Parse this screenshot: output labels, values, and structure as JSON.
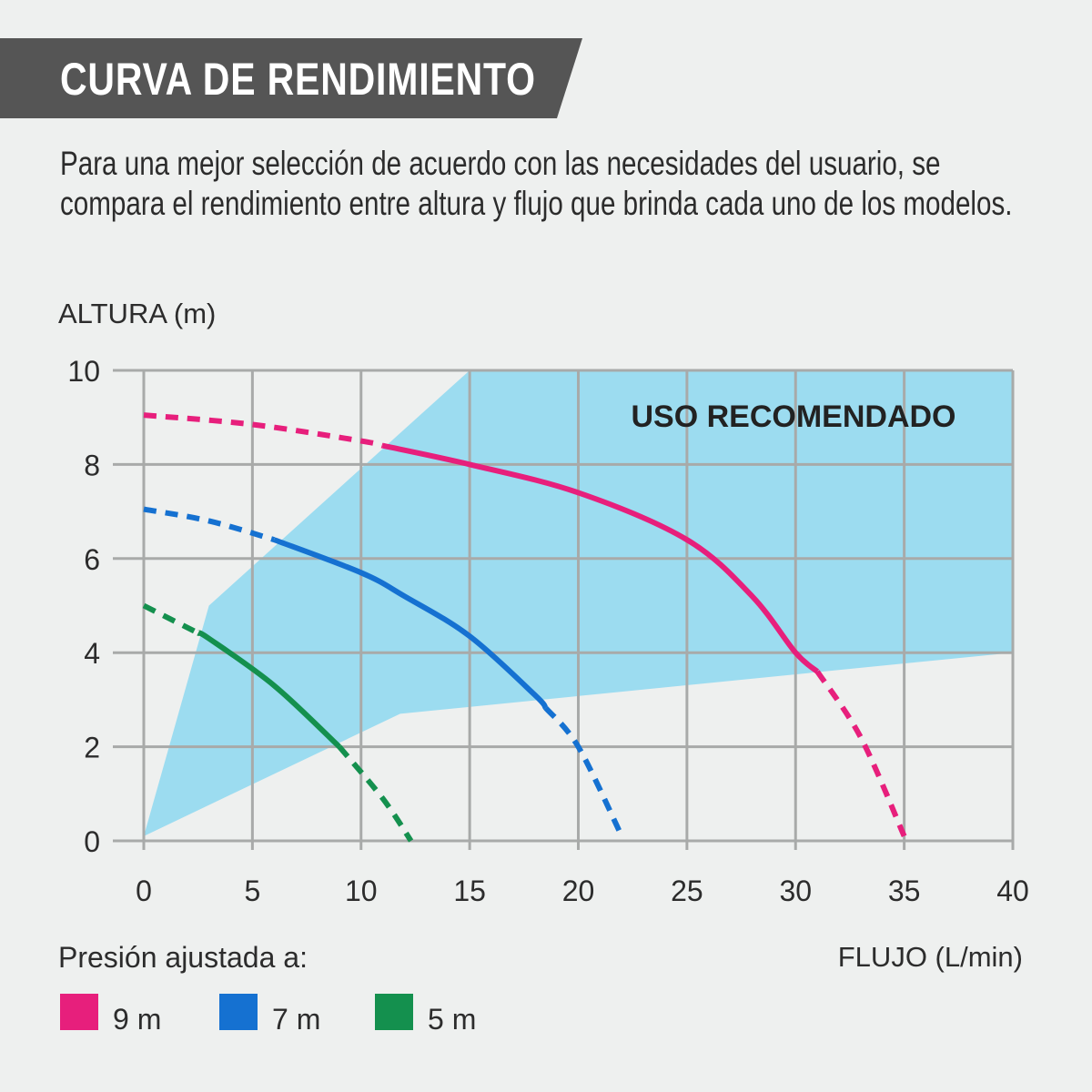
{
  "header": {
    "title": "CURVA DE RENDIMIENTO",
    "description": "Para una mejor selección de acuerdo con las necesidades del usuario, se compara el rendimiento entre altura y flujo que brinda cada uno de los modelos."
  },
  "colors": {
    "banner": "#555555",
    "recommended_area": "#9cdcf0",
    "grid": "#a8aaa9",
    "series_9m": "#e71f7c",
    "series_7m": "#1571d1",
    "series_5m": "#14904e"
  },
  "legend": {
    "title": "Presión ajustada a:",
    "items": [
      {
        "label": "9 m",
        "color": "#e71f7c"
      },
      {
        "label": "7 m",
        "color": "#1571d1"
      },
      {
        "label": "5 m",
        "color": "#14904e"
      }
    ]
  },
  "chart_data": {
    "type": "line",
    "xlabel": "FLUJO (L/min)",
    "ylabel": "ALTURA (m)",
    "xlim": [
      0,
      40
    ],
    "ylim": [
      0,
      10
    ],
    "xticks": [
      0,
      5,
      10,
      15,
      20,
      25,
      30,
      35,
      40
    ],
    "yticks": [
      0,
      2,
      4,
      6,
      8,
      10
    ],
    "grid": true,
    "annotations": [
      {
        "text": "USO RECOMENDADO"
      }
    ],
    "recommended_region": [
      [
        0,
        0.1
      ],
      [
        3,
        5
      ],
      [
        15,
        10
      ],
      [
        40,
        10
      ],
      [
        40,
        4
      ],
      [
        11.8,
        2.7
      ],
      [
        0,
        0.1
      ]
    ],
    "series": [
      {
        "name": "9 m",
        "color": "#e71f7c",
        "points": [
          [
            0,
            9.05
          ],
          [
            5,
            8.85
          ],
          [
            10,
            8.5
          ],
          [
            11,
            8.4
          ],
          [
            15,
            8.0
          ],
          [
            20,
            7.4
          ],
          [
            25,
            6.4
          ],
          [
            28,
            5.2
          ],
          [
            30,
            4.0
          ],
          [
            31,
            3.6
          ],
          [
            33,
            2.2
          ],
          [
            35,
            0.1
          ]
        ],
        "solid_range": [
          11,
          31
        ]
      },
      {
        "name": "7 m",
        "color": "#1571d1",
        "points": [
          [
            0,
            7.05
          ],
          [
            3,
            6.8
          ],
          [
            6,
            6.4
          ],
          [
            10,
            5.7
          ],
          [
            12,
            5.2
          ],
          [
            15,
            4.35
          ],
          [
            18,
            3.1
          ],
          [
            20,
            2.0
          ],
          [
            22,
            0.1
          ]
        ],
        "solid_range": [
          6,
          18.5
        ]
      },
      {
        "name": "5 m",
        "color": "#14904e",
        "points": [
          [
            0,
            5.0
          ],
          [
            3,
            4.3
          ],
          [
            6,
            3.3
          ],
          [
            9,
            2.0
          ],
          [
            11,
            0.9
          ],
          [
            12.3,
            0.0
          ]
        ],
        "solid_range": [
          2.5,
          9
        ]
      }
    ]
  }
}
